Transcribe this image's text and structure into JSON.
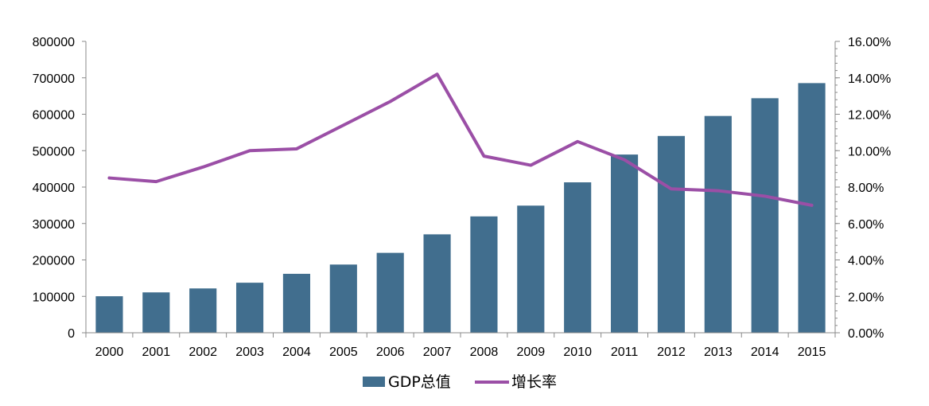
{
  "chart_data": {
    "type": "bar",
    "categories": [
      "2000",
      "2001",
      "2002",
      "2003",
      "2004",
      "2005",
      "2006",
      "2007",
      "2008",
      "2009",
      "2010",
      "2011",
      "2012",
      "2013",
      "2014",
      "2015"
    ],
    "series": [
      {
        "name": "GDP总值",
        "type": "bar",
        "axis": "left",
        "color": "#416E8E",
        "values": [
          100280,
          110863,
          121717,
          137422,
          161840,
          187319,
          219439,
          270232,
          319516,
          349081,
          413030,
          489301,
          540367,
          595244,
          643974,
          685506
        ]
      },
      {
        "name": "增长率",
        "type": "line",
        "axis": "right",
        "color": "#9B4FA6",
        "values": [
          8.5,
          8.3,
          9.1,
          10.0,
          10.1,
          11.4,
          12.7,
          14.2,
          9.7,
          9.2,
          10.5,
          9.5,
          7.9,
          7.8,
          7.5,
          7.0
        ]
      }
    ],
    "y_left": {
      "min": 0,
      "max": 800000,
      "step": 100000,
      "tick_labels": [
        "0",
        "100000",
        "200000",
        "300000",
        "400000",
        "500000",
        "600000",
        "700000",
        "800000"
      ]
    },
    "y_right": {
      "min": 0,
      "max": 16,
      "step": 2,
      "tick_labels": [
        "0.00%",
        "2.00%",
        "4.00%",
        "6.00%",
        "8.00%",
        "10.00%",
        "12.00%",
        "14.00%",
        "16.00%"
      ]
    },
    "grid": false,
    "legend_position": "bottom"
  }
}
